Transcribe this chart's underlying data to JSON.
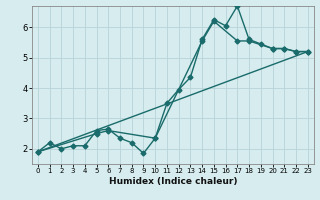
{
  "xlabel": "Humidex (Indice chaleur)",
  "bg_color": "#d6ecee",
  "grid_color": "#b8d4d8",
  "line_color": "#1a6b6b",
  "xlim": [
    -0.5,
    23.5
  ],
  "ylim": [
    1.5,
    6.7
  ],
  "xticks": [
    0,
    1,
    2,
    3,
    4,
    5,
    6,
    7,
    8,
    9,
    10,
    11,
    12,
    13,
    14,
    15,
    16,
    17,
    18,
    19,
    20,
    21,
    22,
    23
  ],
  "yticks": [
    2,
    3,
    4,
    5,
    6
  ],
  "line1_x": [
    0,
    1,
    2,
    3,
    4,
    5,
    6,
    7,
    8,
    9,
    10,
    11,
    12,
    13,
    14,
    15,
    16,
    17,
    18,
    19,
    20,
    21,
    22,
    23
  ],
  "line1_y": [
    1.9,
    2.2,
    2.0,
    2.1,
    2.1,
    2.6,
    2.65,
    2.35,
    2.2,
    1.85,
    2.35,
    3.5,
    3.95,
    4.35,
    5.6,
    6.25,
    6.05,
    6.7,
    5.6,
    5.45,
    5.3,
    5.3,
    5.2,
    5.2
  ],
  "line2_x": [
    0,
    5,
    6,
    10,
    14,
    15,
    17,
    18,
    20,
    21,
    22,
    23
  ],
  "line2_y": [
    1.9,
    2.5,
    2.6,
    2.35,
    5.55,
    6.2,
    5.55,
    5.55,
    5.3,
    5.3,
    5.2,
    5.2
  ],
  "line3_x": [
    0,
    23
  ],
  "line3_y": [
    1.9,
    5.2
  ],
  "marker": "D",
  "markersize": 2.5,
  "linewidth": 1.0
}
